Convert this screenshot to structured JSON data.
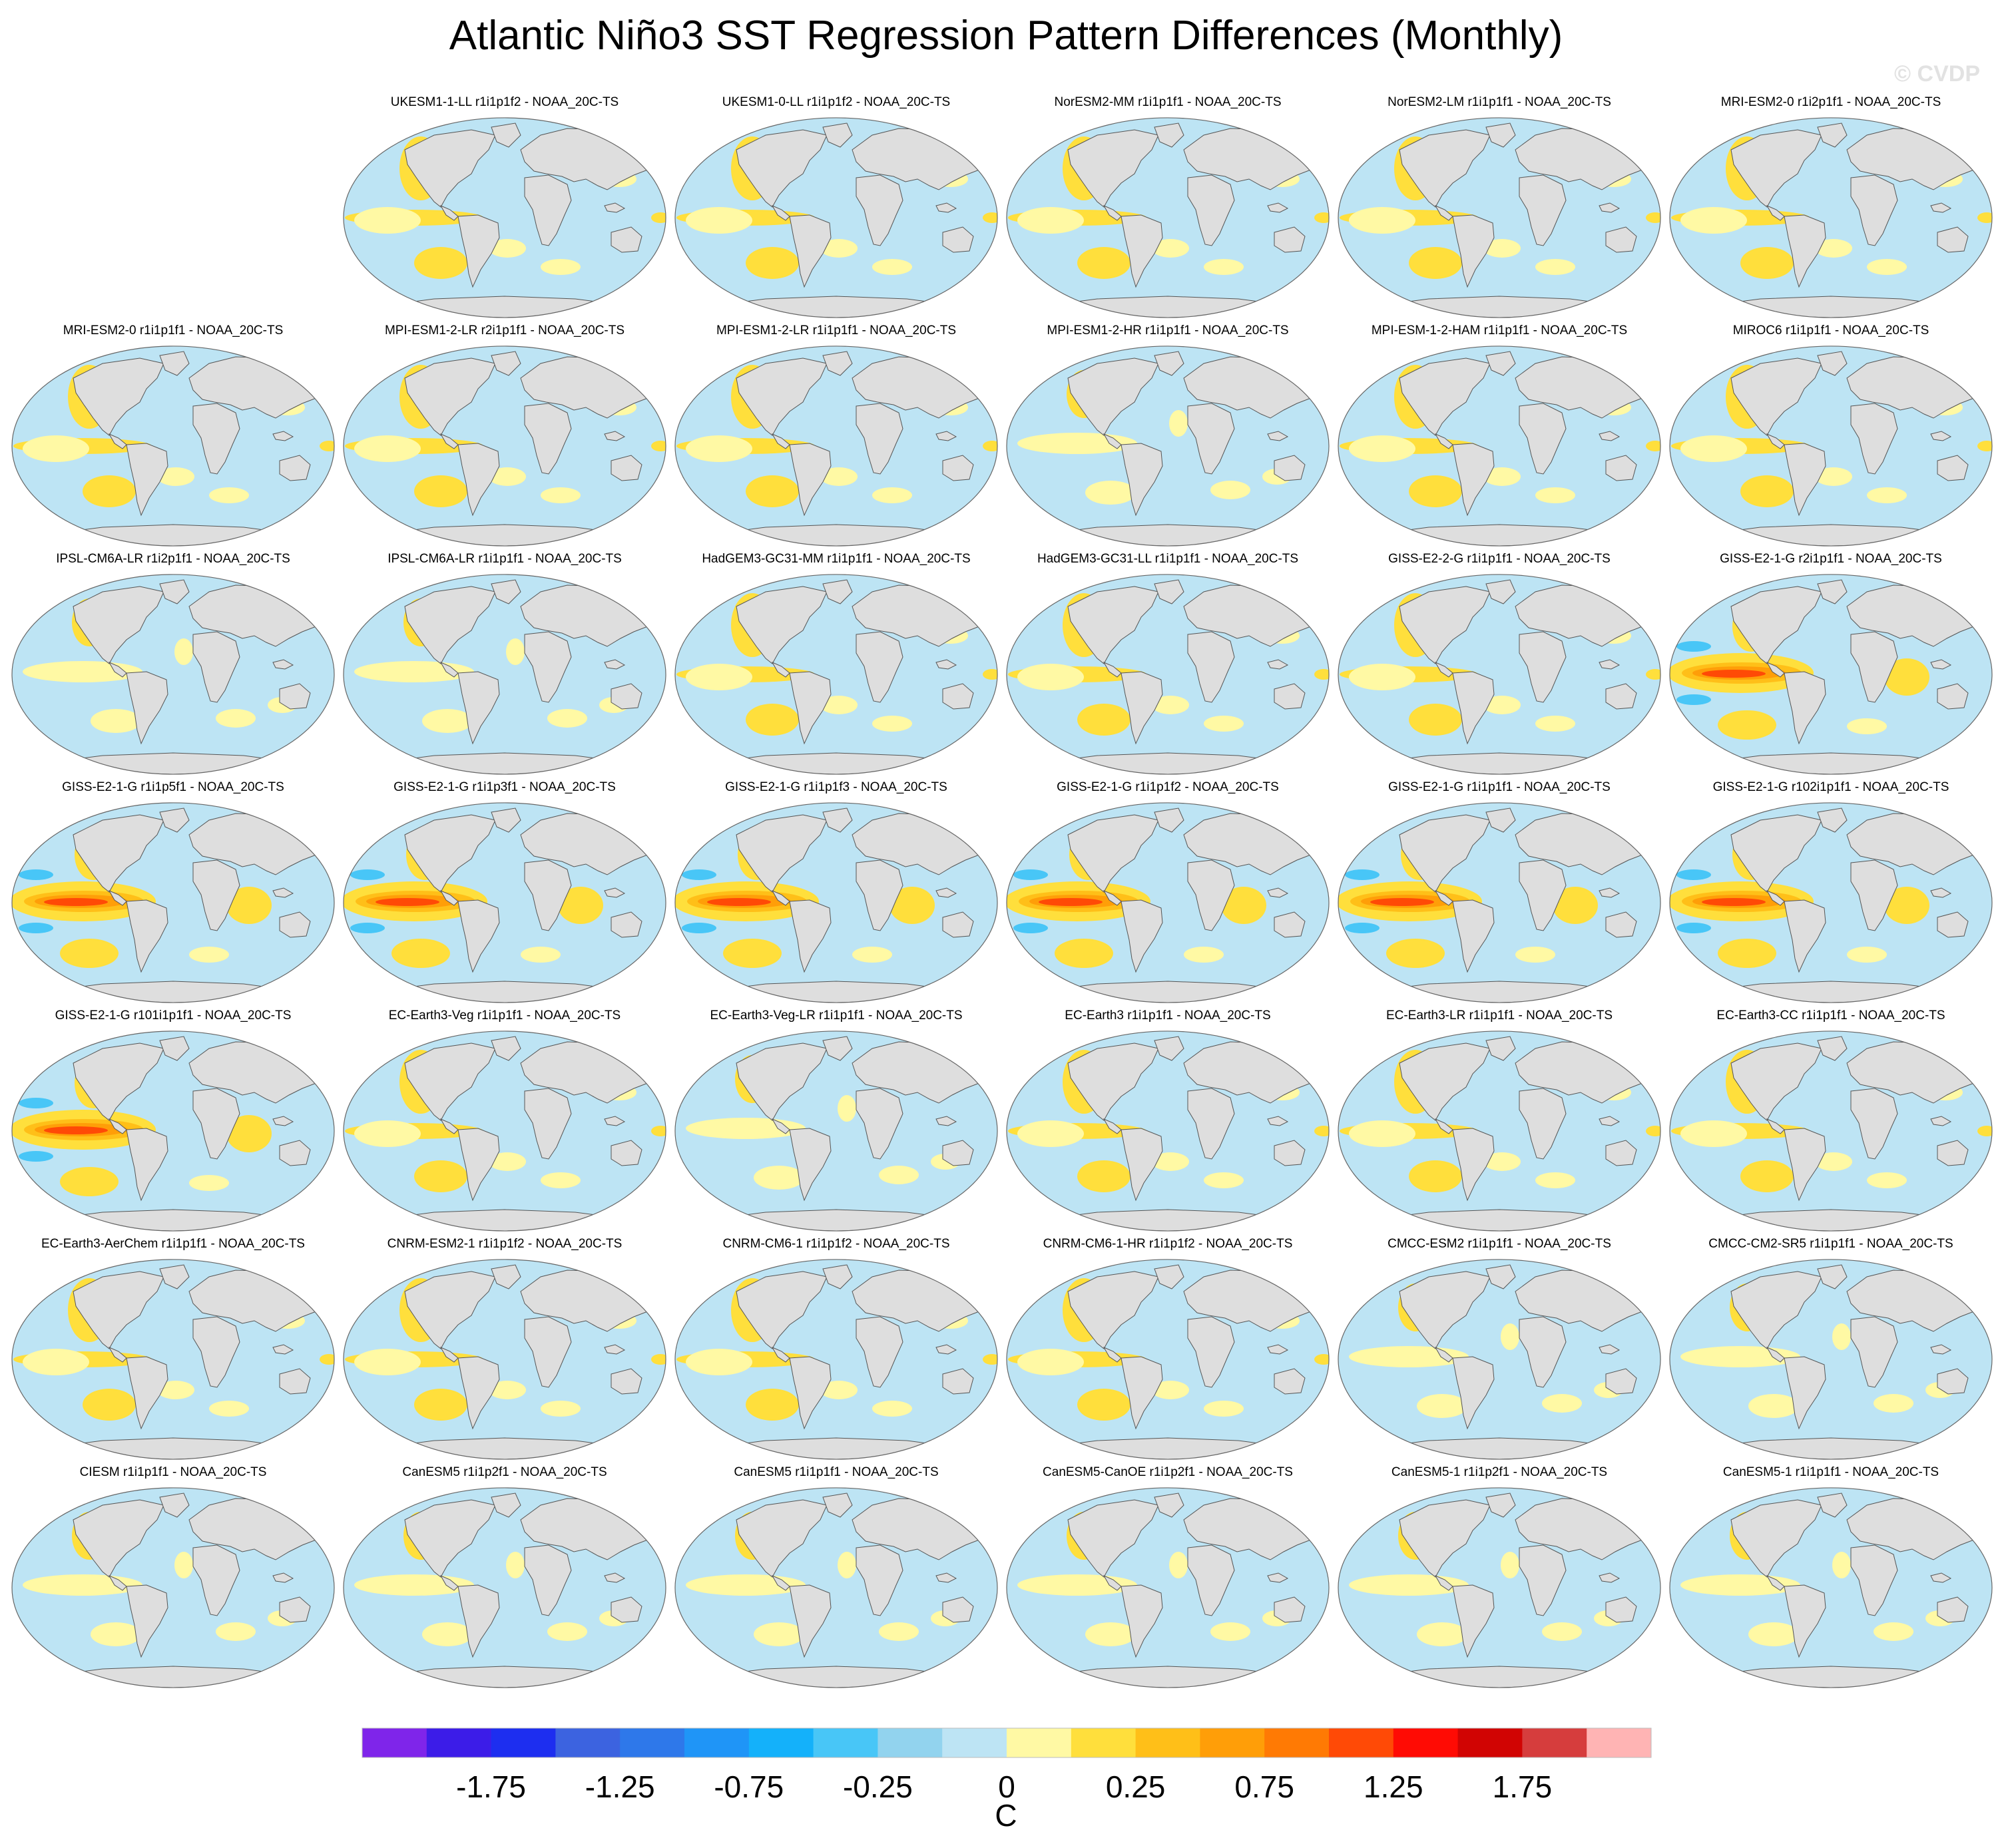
{
  "title": "Atlantic Niño3 SST Regression Pattern Differences (Monthly)",
  "watermark": "© CVDP",
  "panels": [
    {
      "label": "UKESM1-1-LL r1i1p1f2 - NOAA_20C-TS",
      "row": 0,
      "col": 1,
      "style": "A"
    },
    {
      "label": "UKESM1-0-LL r1i1p1f2 - NOAA_20C-TS",
      "row": 0,
      "col": 2,
      "style": "A"
    },
    {
      "label": "NorESM2-MM r1i1p1f1 - NOAA_20C-TS",
      "row": 0,
      "col": 3,
      "style": "A"
    },
    {
      "label": "NorESM2-LM r1i1p1f1 - NOAA_20C-TS",
      "row": 0,
      "col": 4,
      "style": "A"
    },
    {
      "label": "MRI-ESM2-0 r1i2p1f1 - NOAA_20C-TS",
      "row": 0,
      "col": 5,
      "style": "A"
    },
    {
      "label": "MRI-ESM2-0 r1i1p1f1 - NOAA_20C-TS",
      "row": 1,
      "col": 0,
      "style": "A"
    },
    {
      "label": "MPI-ESM1-2-LR r2i1p1f1 - NOAA_20C-TS",
      "row": 1,
      "col": 1,
      "style": "A"
    },
    {
      "label": "MPI-ESM1-2-LR r1i1p1f1 - NOAA_20C-TS",
      "row": 1,
      "col": 2,
      "style": "A"
    },
    {
      "label": "MPI-ESM1-2-HR r1i1p1f1 - NOAA_20C-TS",
      "row": 1,
      "col": 3,
      "style": "B"
    },
    {
      "label": "MPI-ESM-1-2-HAM r1i1p1f1 - NOAA_20C-TS",
      "row": 1,
      "col": 4,
      "style": "A"
    },
    {
      "label": "MIROC6 r1i1p1f1 - NOAA_20C-TS",
      "row": 1,
      "col": 5,
      "style": "A"
    },
    {
      "label": "IPSL-CM6A-LR r1i2p1f1 - NOAA_20C-TS",
      "row": 2,
      "col": 0,
      "style": "B"
    },
    {
      "label": "IPSL-CM6A-LR r1i1p1f1 - NOAA_20C-TS",
      "row": 2,
      "col": 1,
      "style": "B"
    },
    {
      "label": "HadGEM3-GC31-MM r1i1p1f1 - NOAA_20C-TS",
      "row": 2,
      "col": 2,
      "style": "A"
    },
    {
      "label": "HadGEM3-GC31-LL r1i1p1f1 - NOAA_20C-TS",
      "row": 2,
      "col": 3,
      "style": "A"
    },
    {
      "label": "GISS-E2-2-G r1i1p1f1 - NOAA_20C-TS",
      "row": 2,
      "col": 4,
      "style": "A"
    },
    {
      "label": "GISS-E2-1-G r2i1p1f1 - NOAA_20C-TS",
      "row": 2,
      "col": 5,
      "style": "G"
    },
    {
      "label": "GISS-E2-1-G r1i1p5f1 - NOAA_20C-TS",
      "row": 3,
      "col": 0,
      "style": "G"
    },
    {
      "label": "GISS-E2-1-G r1i1p3f1 - NOAA_20C-TS",
      "row": 3,
      "col": 1,
      "style": "G"
    },
    {
      "label": "GISS-E2-1-G r1i1p1f3 - NOAA_20C-TS",
      "row": 3,
      "col": 2,
      "style": "G"
    },
    {
      "label": "GISS-E2-1-G r1i1p1f2 - NOAA_20C-TS",
      "row": 3,
      "col": 3,
      "style": "G"
    },
    {
      "label": "GISS-E2-1-G r1i1p1f1 - NOAA_20C-TS",
      "row": 3,
      "col": 4,
      "style": "G"
    },
    {
      "label": "GISS-E2-1-G r102i1p1f1 - NOAA_20C-TS",
      "row": 3,
      "col": 5,
      "style": "G"
    },
    {
      "label": "GISS-E2-1-G r101i1p1f1 - NOAA_20C-TS",
      "row": 4,
      "col": 0,
      "style": "G"
    },
    {
      "label": "EC-Earth3-Veg r1i1p1f1 - NOAA_20C-TS",
      "row": 4,
      "col": 1,
      "style": "A"
    },
    {
      "label": "EC-Earth3-Veg-LR r1i1p1f1 - NOAA_20C-TS",
      "row": 4,
      "col": 2,
      "style": "B"
    },
    {
      "label": "EC-Earth3 r1i1p1f1 - NOAA_20C-TS",
      "row": 4,
      "col": 3,
      "style": "A"
    },
    {
      "label": "EC-Earth3-LR r1i1p1f1 - NOAA_20C-TS",
      "row": 4,
      "col": 4,
      "style": "A"
    },
    {
      "label": "EC-Earth3-CC r1i1p1f1 - NOAA_20C-TS",
      "row": 4,
      "col": 5,
      "style": "A"
    },
    {
      "label": "EC-Earth3-AerChem r1i1p1f1 - NOAA_20C-TS",
      "row": 5,
      "col": 0,
      "style": "A"
    },
    {
      "label": "CNRM-ESM2-1 r1i1p1f2 - NOAA_20C-TS",
      "row": 5,
      "col": 1,
      "style": "A"
    },
    {
      "label": "CNRM-CM6-1 r1i1p1f2 - NOAA_20C-TS",
      "row": 5,
      "col": 2,
      "style": "A"
    },
    {
      "label": "CNRM-CM6-1-HR r1i1p1f2 - NOAA_20C-TS",
      "row": 5,
      "col": 3,
      "style": "A"
    },
    {
      "label": "CMCC-ESM2 r1i1p1f1 - NOAA_20C-TS",
      "row": 5,
      "col": 4,
      "style": "B"
    },
    {
      "label": "CMCC-CM2-SR5 r1i1p1f1 - NOAA_20C-TS",
      "row": 5,
      "col": 5,
      "style": "B"
    },
    {
      "label": "CIESM r1i1p1f1 - NOAA_20C-TS",
      "row": 6,
      "col": 0,
      "style": "B"
    },
    {
      "label": "CanESM5 r1i1p2f1 - NOAA_20C-TS",
      "row": 6,
      "col": 1,
      "style": "B"
    },
    {
      "label": "CanESM5 r1i1p1f1 - NOAA_20C-TS",
      "row": 6,
      "col": 2,
      "style": "B"
    },
    {
      "label": "CanESM5-CanOE r1i1p2f1 - NOAA_20C-TS",
      "row": 6,
      "col": 3,
      "style": "B"
    },
    {
      "label": "CanESM5-1 r1i1p2f1 - NOAA_20C-TS",
      "row": 6,
      "col": 4,
      "style": "B"
    },
    {
      "label": "CanESM5-1 r1i1p1f1 - NOAA_20C-TS",
      "row": 6,
      "col": 5,
      "style": "B"
    }
  ],
  "colorbar": {
    "colors": [
      "#7f25ea",
      "#3c1ce8",
      "#1d2ef0",
      "#3c63e0",
      "#2e78ea",
      "#1f95f7",
      "#14b1fa",
      "#48c6f7",
      "#92d3ee",
      "#bde4f4",
      "#fff9a4",
      "#ffdf3c",
      "#ffbf18",
      "#ff9e08",
      "#ff7a04",
      "#ff4a06",
      "#ff0b04",
      "#d10403",
      "#d63d3d",
      "#ffb4b4"
    ],
    "tick_labels": [
      "-1.75",
      "-1.25",
      "-0.75",
      "-0.25",
      "0",
      "0.25",
      "0.75",
      "1.25",
      "1.75"
    ],
    "unit": "C"
  }
}
